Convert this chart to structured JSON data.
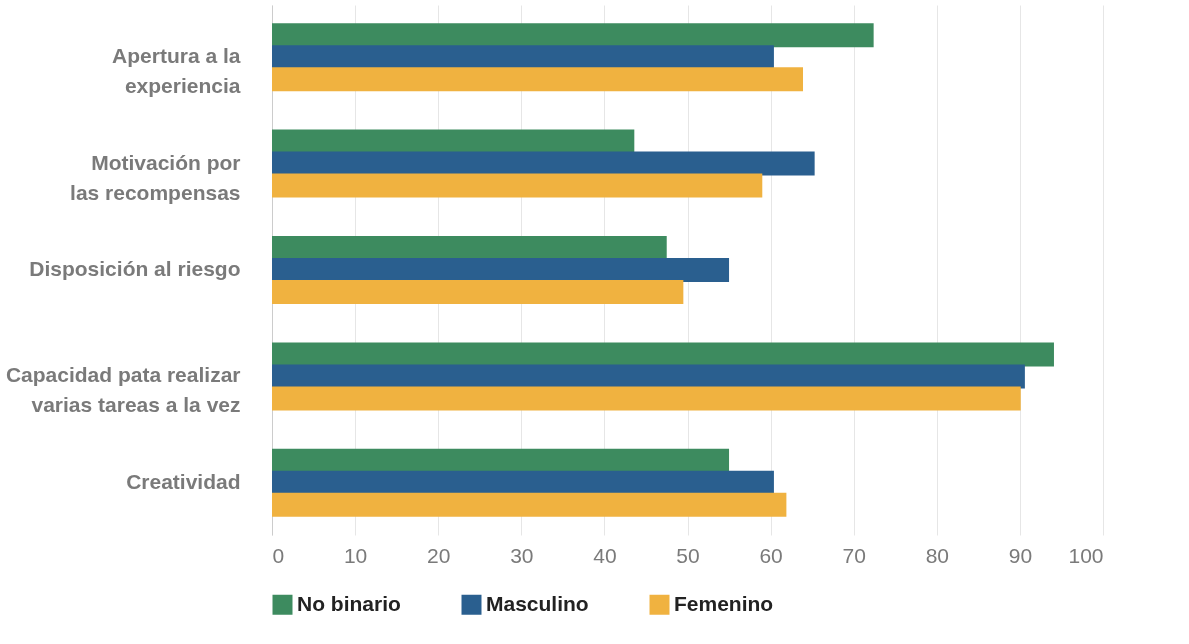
{
  "chart_data": {
    "type": "bar",
    "orientation": "horizontal",
    "categories": [
      "Apertura a la\nexperiencia",
      "Motivación por\nlas recompensas",
      "Disposición al riesgo",
      "Capacidad pata realizar\nvarias tareas a la vez",
      "Creatividad"
    ],
    "series": [
      {
        "name": "No binario",
        "color": "#3d8b5f",
        "values": [
          72.4,
          43.6,
          47.5,
          94.1,
          55.0
        ]
      },
      {
        "name": "Masculino",
        "color": "#2a5f8f",
        "values": [
          60.4,
          65.3,
          55.0,
          90.6,
          60.4
        ]
      },
      {
        "name": "Femenino",
        "color": "#f0b240",
        "values": [
          63.9,
          59.0,
          49.5,
          90.1,
          61.9
        ]
      }
    ],
    "xlim": [
      0,
      100
    ],
    "xticks": [
      0,
      10,
      20,
      30,
      40,
      50,
      60,
      70,
      80,
      90,
      100
    ],
    "grid": "x",
    "legend": "bottom"
  }
}
